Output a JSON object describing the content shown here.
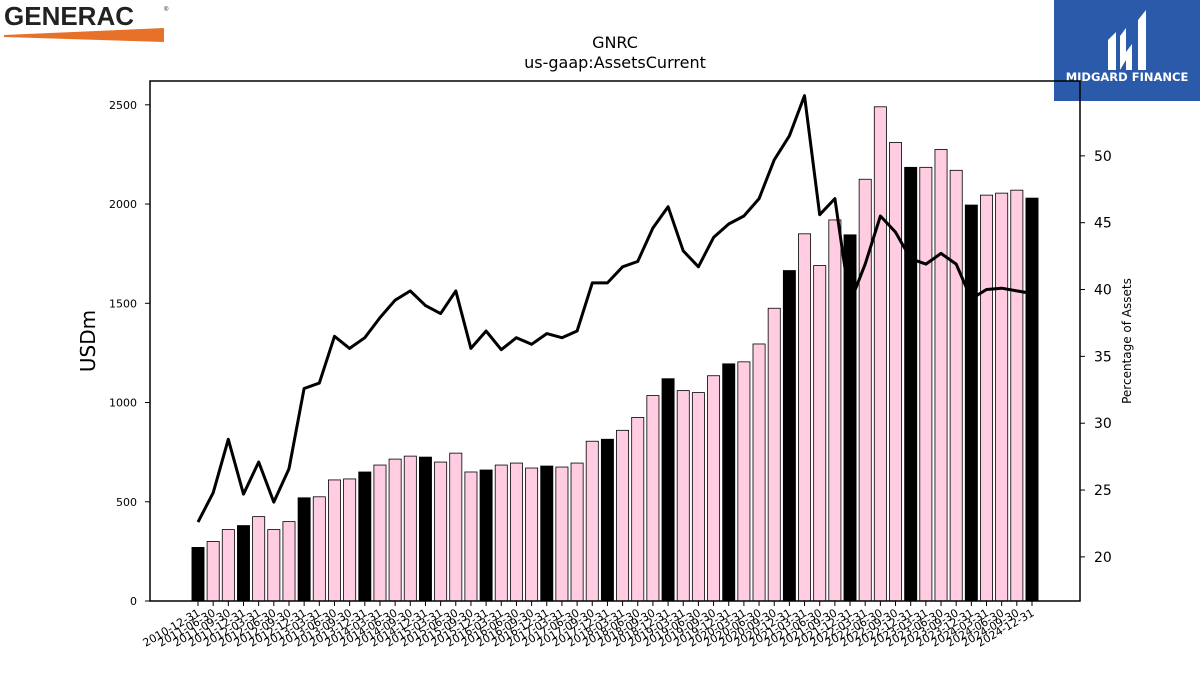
{
  "logos": {
    "left_text": "GENERAC",
    "right_text": "MIDGARD FINANCE"
  },
  "colors": {
    "bar_q4": "#000000",
    "bar_other": "#ffcce1",
    "line": "#000000",
    "generac_orange": "#e8712a",
    "midgard_blue": "#2b5aab"
  },
  "chart_data": {
    "type": "bar",
    "title": "GNRC",
    "subtitle": "us-gaap:AssetsCurrent",
    "ylabel": "USDm",
    "y2label": "Percentage of Assets",
    "ylim": [
      0,
      2620
    ],
    "y2lim": [
      16.7,
      55.6
    ],
    "yticks": [
      0,
      500,
      1000,
      1500,
      2000,
      2500
    ],
    "y2ticks": [
      20,
      25,
      30,
      35,
      40,
      45,
      50
    ],
    "grid": false,
    "categories": [
      "2010-12-31",
      "2011-06-30",
      "2011-09-30",
      "2011-12-31",
      "2012-03-31",
      "2012-06-30",
      "2012-09-30",
      "2012-12-31",
      "2013-03-31",
      "2013-06-30",
      "2013-09-30",
      "2013-12-31",
      "2014-03-31",
      "2014-06-30",
      "2014-09-30",
      "2014-12-31",
      "2015-03-31",
      "2015-06-30",
      "2015-09-30",
      "2015-12-31",
      "2016-03-31",
      "2016-06-30",
      "2016-09-30",
      "2016-12-31",
      "2017-03-31",
      "2017-06-30",
      "2017-09-30",
      "2017-12-31",
      "2018-03-31",
      "2018-06-30",
      "2018-09-30",
      "2018-12-31",
      "2019-03-31",
      "2019-06-30",
      "2019-09-30",
      "2019-12-31",
      "2020-03-31",
      "2020-06-30",
      "2020-09-30",
      "2020-12-31",
      "2021-03-31",
      "2021-06-30",
      "2021-09-30",
      "2021-12-31",
      "2022-03-31",
      "2022-06-30",
      "2022-09-30",
      "2022-12-31",
      "2023-03-31",
      "2023-06-30",
      "2023-09-30",
      "2023-12-31",
      "2024-03-31",
      "2024-06-30",
      "2024-09-30",
      "2024-12-31"
    ],
    "series": [
      {
        "values": [
          270,
          300,
          360,
          380,
          425,
          360,
          400,
          520,
          525,
          610,
          615,
          650,
          685,
          715,
          730,
          725,
          700,
          745,
          650,
          660,
          685,
          695,
          670,
          680,
          675,
          695,
          805,
          815,
          860,
          925,
          1035,
          1120,
          1060,
          1050,
          1135,
          1195,
          1205,
          1295,
          1475,
          1665,
          1850,
          1690,
          1920,
          1845,
          2125,
          2490,
          2310,
          2185,
          2185,
          2275,
          2170,
          1995,
          2045,
          2055,
          2070,
          2030
        ]
      },
      {
        "axis": "right",
        "values": [
          22.6,
          24.8,
          28.8,
          24.7,
          27.1,
          24.1,
          26.6,
          32.6,
          33.0,
          36.5,
          35.6,
          36.4,
          37.9,
          39.2,
          39.9,
          38.8,
          38.2,
          39.9,
          35.6,
          36.9,
          35.5,
          36.4,
          35.9,
          36.7,
          36.4,
          36.9,
          40.5,
          40.5,
          41.7,
          42.1,
          44.6,
          46.2,
          42.9,
          41.7,
          43.9,
          44.9,
          45.5,
          46.8,
          49.7,
          51.5,
          54.5,
          45.6,
          46.8,
          39.0,
          41.9,
          45.5,
          44.3,
          42.3,
          41.9,
          42.7,
          41.9,
          39.3,
          40.0,
          40.1,
          39.9,
          39.7
        ]
      }
    ]
  }
}
